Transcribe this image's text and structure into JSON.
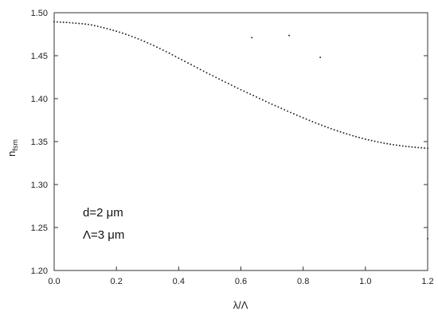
{
  "chart_data": {
    "type": "scatter",
    "title": "",
    "xlabel": "λ/Λ",
    "ylabel": "n",
    "ylabel_sub": "fsm",
    "xlim": [
      0.0,
      1.2
    ],
    "ylim": [
      1.2,
      1.5
    ],
    "xticks": [
      "0.0",
      "0.2",
      "0.4",
      "0.6",
      "0.8",
      "1.0",
      "1.2"
    ],
    "yticks": [
      "1.20",
      "1.25",
      "1.30",
      "1.35",
      "1.40",
      "1.45",
      "1.50"
    ],
    "grid": false,
    "legend": "none",
    "marker_color": "#222222",
    "annotations": [
      "d=2 μm",
      "Λ=3 μm"
    ],
    "series": [
      {
        "points": [
          [
            0.0,
            1.4895
          ],
          [
            0.01,
            1.4893
          ],
          [
            0.02,
            1.4891
          ],
          [
            0.03,
            1.4889
          ],
          [
            0.04,
            1.4887
          ],
          [
            0.05,
            1.4884
          ],
          [
            0.06,
            1.4881
          ],
          [
            0.07,
            1.4878
          ],
          [
            0.08,
            1.4875
          ],
          [
            0.09,
            1.4872
          ],
          [
            0.1,
            1.4868
          ],
          [
            0.11,
            1.4864
          ],
          [
            0.12,
            1.4858
          ],
          [
            0.13,
            1.485
          ],
          [
            0.14,
            1.4842
          ],
          [
            0.15,
            1.4833
          ],
          [
            0.16,
            1.4824
          ],
          [
            0.17,
            1.4815
          ],
          [
            0.18,
            1.4805
          ],
          [
            0.19,
            1.4795
          ],
          [
            0.2,
            1.4785
          ],
          [
            0.21,
            1.4774
          ],
          [
            0.22,
            1.4762
          ],
          [
            0.23,
            1.475
          ],
          [
            0.24,
            1.4737
          ],
          [
            0.25,
            1.4724
          ],
          [
            0.26,
            1.471
          ],
          [
            0.27,
            1.4696
          ],
          [
            0.28,
            1.4681
          ],
          [
            0.29,
            1.4666
          ],
          [
            0.3,
            1.465
          ],
          [
            0.31,
            1.4634
          ],
          [
            0.32,
            1.4617
          ],
          [
            0.33,
            1.46
          ],
          [
            0.34,
            1.4583
          ],
          [
            0.35,
            1.4565
          ],
          [
            0.36,
            1.4547
          ],
          [
            0.37,
            1.4529
          ],
          [
            0.38,
            1.451
          ],
          [
            0.39,
            1.4491
          ],
          [
            0.4,
            1.4472
          ],
          [
            0.41,
            1.4453
          ],
          [
            0.42,
            1.4434
          ],
          [
            0.43,
            1.4415
          ],
          [
            0.44,
            1.4396
          ],
          [
            0.45,
            1.4377
          ],
          [
            0.46,
            1.4358
          ],
          [
            0.47,
            1.4339
          ],
          [
            0.48,
            1.432
          ],
          [
            0.49,
            1.4301
          ],
          [
            0.5,
            1.4283
          ],
          [
            0.51,
            1.4265
          ],
          [
            0.52,
            1.4247
          ],
          [
            0.53,
            1.4229
          ],
          [
            0.54,
            1.4211
          ],
          [
            0.55,
            1.4193
          ],
          [
            0.56,
            1.4175
          ],
          [
            0.57,
            1.4157
          ],
          [
            0.58,
            1.4139
          ],
          [
            0.59,
            1.4121
          ],
          [
            0.6,
            1.4104
          ],
          [
            0.61,
            1.4087
          ],
          [
            0.62,
            1.407
          ],
          [
            0.63,
            1.4053
          ],
          [
            0.64,
            1.4036
          ],
          [
            0.65,
            1.4019
          ],
          [
            0.66,
            1.4002
          ],
          [
            0.67,
            1.3985
          ],
          [
            0.68,
            1.3968
          ],
          [
            0.69,
            1.3951
          ],
          [
            0.7,
            1.3935
          ],
          [
            0.71,
            1.3919
          ],
          [
            0.72,
            1.3903
          ],
          [
            0.73,
            1.3887
          ],
          [
            0.74,
            1.3871
          ],
          [
            0.75,
            1.3855
          ],
          [
            0.76,
            1.3839
          ],
          [
            0.77,
            1.3823
          ],
          [
            0.78,
            1.3807
          ],
          [
            0.79,
            1.3792
          ],
          [
            0.8,
            1.3777
          ],
          [
            0.81,
            1.3762
          ],
          [
            0.82,
            1.3747
          ],
          [
            0.83,
            1.3732
          ],
          [
            0.84,
            1.3718
          ],
          [
            0.85,
            1.3704
          ],
          [
            0.86,
            1.369
          ],
          [
            0.87,
            1.3676
          ],
          [
            0.88,
            1.3663
          ],
          [
            0.89,
            1.365
          ],
          [
            0.9,
            1.3637
          ],
          [
            0.91,
            1.3625
          ],
          [
            0.92,
            1.3613
          ],
          [
            0.93,
            1.3601
          ],
          [
            0.94,
            1.359
          ],
          [
            0.95,
            1.3579
          ],
          [
            0.96,
            1.3568
          ],
          [
            0.97,
            1.3558
          ],
          [
            0.98,
            1.3548
          ],
          [
            0.99,
            1.3538
          ],
          [
            1.0,
            1.3529
          ],
          [
            1.01,
            1.352
          ],
          [
            1.02,
            1.3512
          ],
          [
            1.03,
            1.3504
          ],
          [
            1.04,
            1.3496
          ],
          [
            1.05,
            1.3489
          ],
          [
            1.06,
            1.3482
          ],
          [
            1.07,
            1.3476
          ],
          [
            1.08,
            1.347
          ],
          [
            1.09,
            1.3464
          ],
          [
            1.1,
            1.3459
          ],
          [
            1.11,
            1.3454
          ],
          [
            1.12,
            1.3449
          ],
          [
            1.13,
            1.3445
          ],
          [
            1.14,
            1.3441
          ],
          [
            1.15,
            1.3437
          ],
          [
            1.16,
            1.3434
          ],
          [
            1.17,
            1.3431
          ],
          [
            1.18,
            1.3428
          ],
          [
            1.19,
            1.3425
          ],
          [
            1.2,
            1.3422
          ],
          [
            0.635,
            1.471
          ],
          [
            0.755,
            1.4735
          ],
          [
            0.855,
            1.448
          ],
          [
            1.2,
            1.237
          ]
        ]
      }
    ]
  }
}
